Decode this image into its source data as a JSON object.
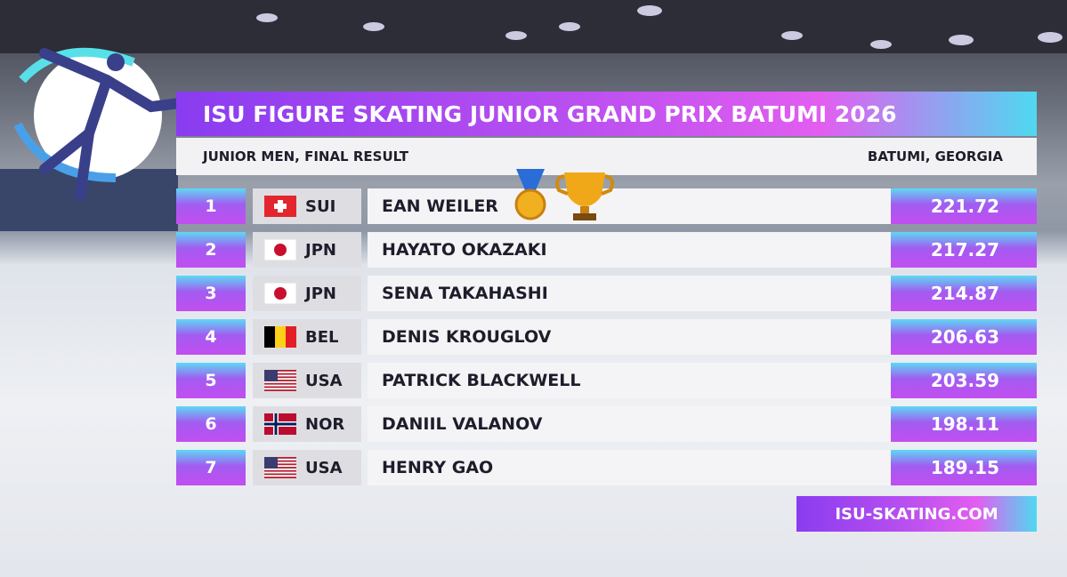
{
  "header": {
    "title": "ISU FIGURE SKATING JUNIOR GRAND PRIX BATUMI 2026",
    "subtitle": "JUNIOR MEN, FINAL RESULT",
    "location": "BATUMI, GEORGIA"
  },
  "table": {
    "rows": [
      {
        "rank": 1,
        "country": "SUI",
        "name": "EAN WEILER",
        "score": 221.72
      },
      {
        "rank": 2,
        "country": "JPN",
        "name": "HAYATO OKAZAKI",
        "score": 217.27
      },
      {
        "rank": 3,
        "country": "JPN",
        "name": "SENA TAKAHASHI",
        "score": 214.87
      },
      {
        "rank": 4,
        "country": "BEL",
        "name": "DENIS KROUGLOV",
        "score": 206.63
      },
      {
        "rank": 5,
        "country": "USA",
        "name": "PATRICK BLACKWELL",
        "score": 203.59
      },
      {
        "rank": 6,
        "country": "NOR",
        "name": "DANIIL VALANOV",
        "score": 198.11
      },
      {
        "rank": 7,
        "country": "USA",
        "name": "HENRY GAO",
        "score": 189.15
      }
    ]
  },
  "footer": {
    "url": "ISU-SKATING.COM"
  }
}
